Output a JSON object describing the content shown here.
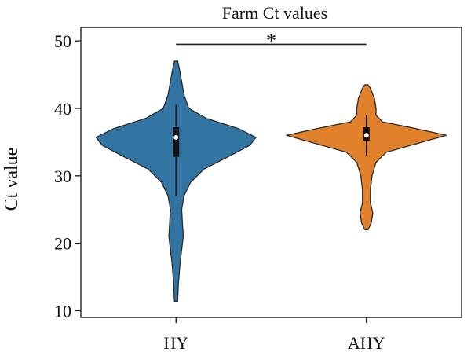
{
  "chart_data": {
    "type": "violin",
    "title": "Farm Ct values",
    "xlabel": "",
    "ylabel": "Ct value",
    "categories": [
      "HY",
      "AHY"
    ],
    "ylim": [
      9,
      52
    ],
    "yticks": [
      10,
      20,
      30,
      40,
      50
    ],
    "grid": false,
    "colors": [
      "#3274a1",
      "#e1812c"
    ],
    "series": [
      {
        "category": "HY",
        "min": 11.4,
        "max": 47.0,
        "q1": 32.8,
        "median": 35.7,
        "q3": 37.2,
        "whisker_low": 27.0,
        "whisker_high": 40.5,
        "density": [
          [
            11.4,
            0.02
          ],
          [
            14,
            0.03
          ],
          [
            17,
            0.05
          ],
          [
            19,
            0.07
          ],
          [
            21,
            0.09
          ],
          [
            23,
            0.08
          ],
          [
            25,
            0.07
          ],
          [
            27,
            0.1
          ],
          [
            29,
            0.18
          ],
          [
            31,
            0.35
          ],
          [
            33,
            0.68
          ],
          [
            34.5,
            0.92
          ],
          [
            35.7,
            1.0
          ],
          [
            37,
            0.78
          ],
          [
            38.5,
            0.38
          ],
          [
            40,
            0.16
          ],
          [
            42,
            0.1
          ],
          [
            44,
            0.07
          ],
          [
            46,
            0.04
          ],
          [
            47,
            0.02
          ]
        ]
      },
      {
        "category": "AHY",
        "min": 22.0,
        "max": 43.5,
        "q1": 35.2,
        "median": 36.0,
        "q3": 37.2,
        "whisker_low": 33.0,
        "whisker_high": 39.0,
        "density": [
          [
            22.0,
            0.02
          ],
          [
            23,
            0.06
          ],
          [
            24.5,
            0.08
          ],
          [
            26,
            0.05
          ],
          [
            28,
            0.05
          ],
          [
            30,
            0.07
          ],
          [
            32,
            0.12
          ],
          [
            33.5,
            0.25
          ],
          [
            35,
            0.7
          ],
          [
            36,
            1.0
          ],
          [
            37,
            0.62
          ],
          [
            38,
            0.2
          ],
          [
            39,
            0.12
          ],
          [
            40,
            0.12
          ],
          [
            41.5,
            0.1
          ],
          [
            43,
            0.05
          ],
          [
            43.5,
            0.02
          ]
        ]
      }
    ],
    "annotations": [
      {
        "text": "*",
        "from": "HY",
        "to": "AHY",
        "y": 49.5
      }
    ]
  }
}
